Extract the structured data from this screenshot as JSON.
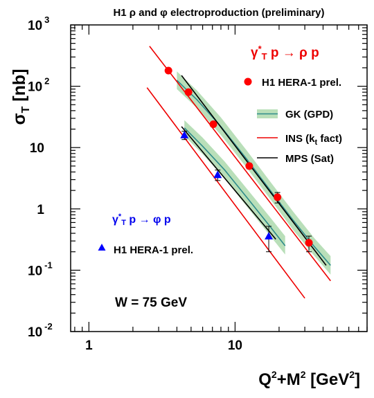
{
  "chart_data": {
    "type": "scatter",
    "title": "H1 ρ and φ electroproduction (preliminary)",
    "xlabel": "Q²+M² [GeV²]",
    "ylabel": "σT [nb]",
    "x_scale": "log",
    "y_scale": "log",
    "xlim": [
      0.75,
      80
    ],
    "ylim": [
      0.01,
      1000
    ],
    "x_ticks": [
      {
        "value": 1,
        "label": "1"
      },
      {
        "value": 10,
        "label": "10"
      }
    ],
    "y_ticks": [
      {
        "value": 1000,
        "base": "10",
        "exp": "3"
      },
      {
        "value": 100,
        "base": "10",
        "exp": "2"
      },
      {
        "value": 10,
        "base": "10",
        "exp": ""
      },
      {
        "value": 1,
        "base": "1",
        "exp": ""
      },
      {
        "value": 0.1,
        "base": "10",
        "exp": "-1"
      },
      {
        "value": 0.01,
        "base": "10",
        "exp": "-2"
      }
    ],
    "grid": false,
    "annotations": {
      "rho_process": "γ*T p → ρ p",
      "phi_process": "γ*T p → φ p",
      "w_label": "W = 75 GeV"
    },
    "legend": {
      "rho_data": "H1 HERA-1 prel.",
      "phi_data": "H1 HERA-1 prel.",
      "gk": "GK (GPD)",
      "ins": "INS (kt fact)",
      "mps": "MPS (Sat)"
    },
    "colors": {
      "rho": "#ff0000",
      "phi": "#0000ff",
      "gk_line": "#2e8b8b",
      "gk_band": "#b9dfb9",
      "ins": "#ee0000",
      "mps": "#000000"
    },
    "series": [
      {
        "name": "H1 HERA-1 prel.",
        "process": "rho",
        "marker": "circle",
        "points": [
          {
            "x": 3.5,
            "y": 180,
            "err": 12
          },
          {
            "x": 4.8,
            "y": 80,
            "err": 6
          },
          {
            "x": 7.1,
            "y": 24,
            "err": 2
          },
          {
            "x": 12.5,
            "y": 5,
            "err": 0.5
          },
          {
            "x": 19.5,
            "y": 1.55,
            "err": 0.3
          },
          {
            "x": 32,
            "y": 0.28,
            "err": 0.08
          }
        ]
      },
      {
        "name": "H1 HERA-1 prel.",
        "process": "phi",
        "marker": "triangle",
        "points": [
          {
            "x": 4.5,
            "y": 16,
            "err": 2.5
          },
          {
            "x": 7.6,
            "y": 3.6,
            "err": 0.7
          },
          {
            "x": 17,
            "y": 0.36,
            "err": 0.16
          }
        ]
      },
      {
        "name": "GK (GPD)",
        "process": "rho",
        "style": "band",
        "x": [
          4.0,
          5.5,
          8.0,
          12.0,
          18.0,
          25.0,
          35.0,
          45.0
        ],
        "y": [
          125,
          60,
          22,
          6.5,
          1.8,
          0.65,
          0.24,
          0.12
        ],
        "lower": [
          90,
          44,
          16,
          4.7,
          1.3,
          0.45,
          0.17,
          0.085
        ],
        "upper": [
          175,
          85,
          31,
          9.0,
          2.5,
          0.9,
          0.33,
          0.17
        ]
      },
      {
        "name": "GK (GPD)",
        "process": "phi",
        "style": "band",
        "x": [
          4.5,
          6.0,
          8.5,
          12.0,
          17.0,
          22.0
        ],
        "y": [
          21,
          10.5,
          4.3,
          1.55,
          0.55,
          0.25
        ],
        "lower": [
          15.5,
          7.8,
          3.1,
          1.1,
          0.39,
          0.18
        ],
        "upper": [
          28,
          14.5,
          5.9,
          2.15,
          0.78,
          0.36
        ]
      },
      {
        "name": "INS (kt fact)",
        "process": "rho",
        "style": "line",
        "x": [
          2.6,
          45.0
        ],
        "y": [
          450,
          0.067
        ]
      },
      {
        "name": "INS (kt fact)",
        "process": "phi",
        "style": "line",
        "x": [
          2.5,
          30.0
        ],
        "y": [
          95,
          0.035
        ]
      },
      {
        "name": "MPS (Sat)",
        "process": "rho",
        "style": "line",
        "x": [
          4.3,
          42.0
        ],
        "y": [
          150,
          0.12
        ]
      },
      {
        "name": "MPS (Sat)",
        "process": "phi",
        "style": "line",
        "x": [
          4.3,
          19.0
        ],
        "y": [
          22,
          0.32
        ]
      }
    ]
  }
}
